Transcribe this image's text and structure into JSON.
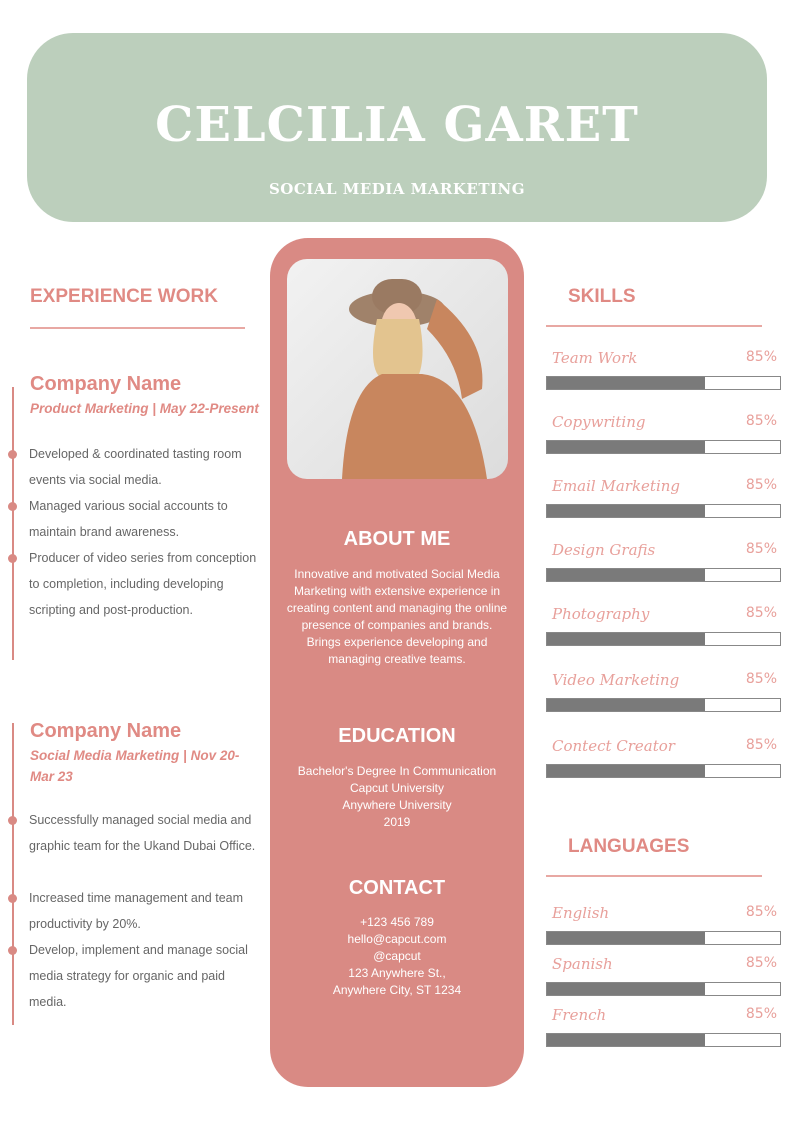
{
  "header": {
    "name": "CELCILIA GARET",
    "title": "SOCIAL MEDIA MARKETING"
  },
  "experience": {
    "heading": "EXPERIENCE WORK",
    "jobs": [
      {
        "company": "Company Name",
        "role": "Product Marketing | May 22-Present",
        "bullets": [
          "Developed & coordinated tasting room events via social media.",
          "Managed various social accounts to maintain brand awareness.",
          "Producer of video series from conception to completion, including developing scripting and post-production."
        ]
      },
      {
        "company": "Company Name",
        "role": "Social Media Marketing | Nov 20-Mar 23",
        "bullets": [
          "Successfully managed social media and graphic team for the Ukand Dubai Office.",
          "Increased time management and team productivity by 20%.",
          "Develop, implement and manage social media strategy for organic and  paid media."
        ]
      }
    ]
  },
  "about": {
    "heading": "ABOUT ME",
    "text": "Innovative and motivated Social Media Marketing with extensive experience in creating content and managing the online presence of companies and brands. Brings experience developing and managing creative teams."
  },
  "education": {
    "heading": "EDUCATION",
    "lines": [
      "Bachelor's Degree In Communication",
      "Capcut University",
      "Anywhere University",
      "2019"
    ]
  },
  "contact": {
    "heading": "CONTACT",
    "lines": [
      "+123  456 789",
      "hello@capcut.com",
      "@capcut",
      "123 Anywhere St.,",
      "Anywhere City, ST 1234"
    ]
  },
  "skills": {
    "heading": "SKILLS",
    "items": [
      {
        "label": "Team Work",
        "percent": "85%",
        "fill": 0.68
      },
      {
        "label": "Copywriting",
        "percent": "85%",
        "fill": 0.68
      },
      {
        "label": "Email Marketing",
        "percent": "85%",
        "fill": 0.68
      },
      {
        "label": "Design Grafis",
        "percent": "85%",
        "fill": 0.68
      },
      {
        "label": "Photography",
        "percent": "85%",
        "fill": 0.68
      },
      {
        "label": "Video Marketing",
        "percent": "85%",
        "fill": 0.68
      },
      {
        "label": "Contect Creator",
        "percent": "85%",
        "fill": 0.68
      }
    ]
  },
  "languages": {
    "heading": "LANGUAGES",
    "items": [
      {
        "label": "English",
        "percent": "85%",
        "fill": 0.68
      },
      {
        "label": "Spanish",
        "percent": "85%",
        "fill": 0.68
      },
      {
        "label": "French",
        "percent": "85%",
        "fill": 0.68
      }
    ]
  },
  "colors": {
    "header": "#bccfbc",
    "accent": "#d98a84",
    "bar": "#7a7a7a"
  }
}
